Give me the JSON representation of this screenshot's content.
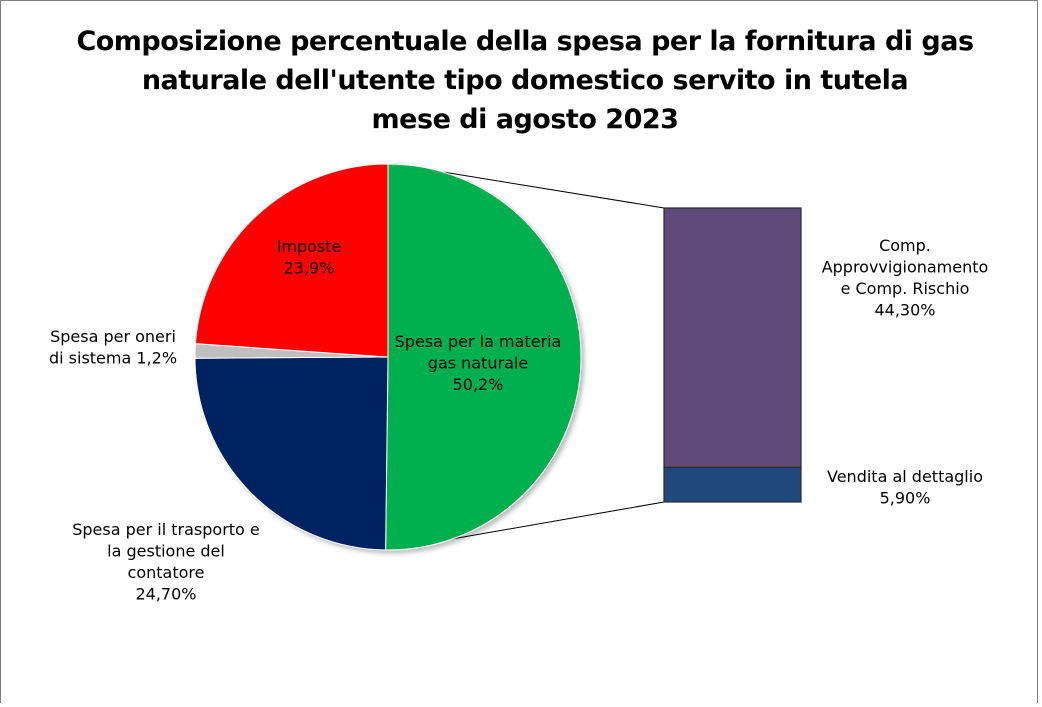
{
  "chart_data": {
    "type": "pie",
    "title_lines": [
      "Composizione percentuale della spesa per la fornitura di gas",
      "naturale dell'utente tipo domestico servito in tutela",
      "mese di agosto 2023"
    ],
    "pie": {
      "slices": [
        {
          "label_lines": [
            "Spesa per la materia",
            "gas naturale",
            "50,2%"
          ],
          "value": 50.2,
          "color": "#00b050"
        },
        {
          "label_lines": [
            "Spesa per il trasporto e",
            "la gestione del",
            "contatore",
            "24,70%"
          ],
          "value": 24.7,
          "color": "#002060"
        },
        {
          "label_lines": [
            "Spesa per oneri",
            "di sistema 1,2%"
          ],
          "value": 1.2,
          "color": "#bfbfbf"
        },
        {
          "label_lines": [
            "Imposte",
            "23,9%"
          ],
          "value": 23.9,
          "color": "#ff0000"
        }
      ]
    },
    "breakdown_bar": {
      "of_slice": "Spesa per la materia gas naturale",
      "segments": [
        {
          "label_lines": [
            "Comp.",
            "Approvvigionamento",
            "e  Comp. Rischio",
            "44,30%"
          ],
          "value": 44.3,
          "color": "#604a7b"
        },
        {
          "label_lines": [
            "Vendita al dettaglio",
            "5,90%"
          ],
          "value": 5.9,
          "color": "#1f497d"
        }
      ]
    }
  }
}
